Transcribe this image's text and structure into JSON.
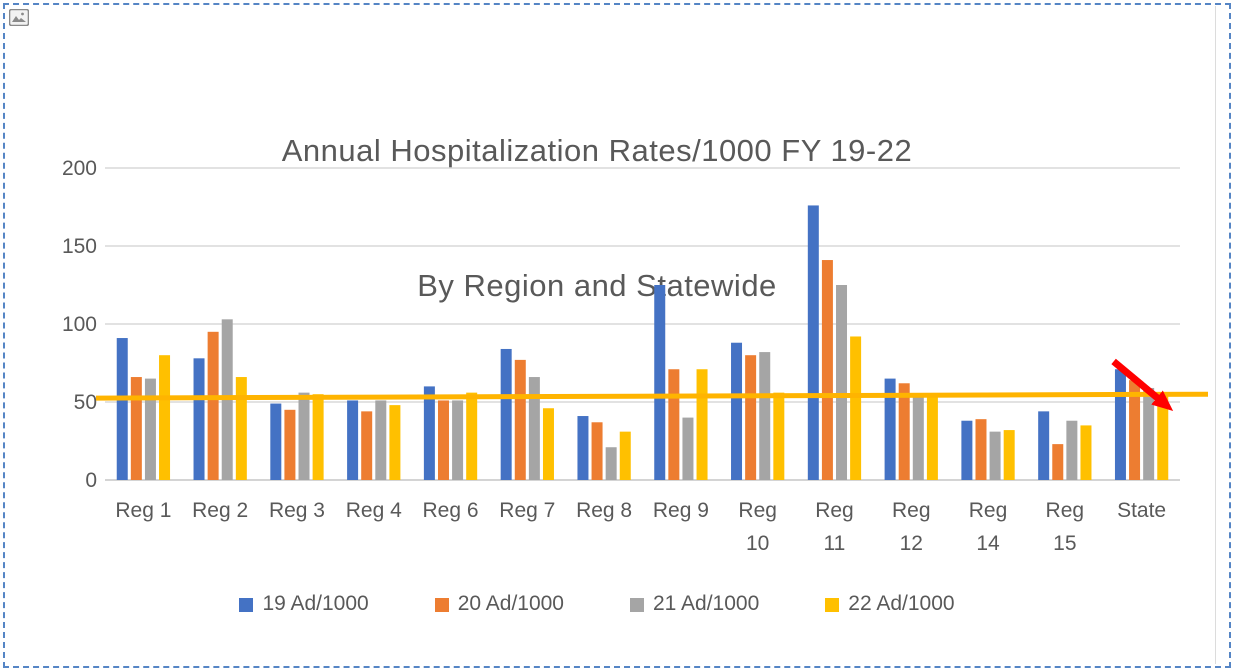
{
  "window": {
    "selection_state": "image selected with dashed marquee border"
  },
  "icons": {
    "image_placeholder": "image-placeholder-icon"
  },
  "chart_data": {
    "type": "bar",
    "title": "Annual Hospitalization Rates/1000 FY 19-22",
    "subtitle": "By Region and Statewide",
    "categories": [
      "Reg 1",
      "Reg 2",
      "Reg 3",
      "Reg 4",
      "Reg 6",
      "Reg 7",
      "Reg 8",
      "Reg 9",
      "Reg 10",
      "Reg 11",
      "Reg 12",
      "Reg 14",
      "Reg 15",
      "State"
    ],
    "wrap_labels": [
      "Reg 10",
      "Reg 11",
      "Reg 12",
      "Reg 14",
      "Reg 15"
    ],
    "series": [
      {
        "name": "19 Ad/1000",
        "color": "#4472C4",
        "values": [
          91,
          78,
          49,
          51,
          60,
          84,
          41,
          125,
          88,
          176,
          65,
          38,
          44,
          71
        ]
      },
      {
        "name": "20 Ad/1000",
        "color": "#ED7D31",
        "values": [
          66,
          95,
          45,
          44,
          51,
          77,
          37,
          71,
          80,
          141,
          62,
          39,
          23,
          64
        ]
      },
      {
        "name": "21 Ad/1000",
        "color": "#A5A5A5",
        "values": [
          65,
          103,
          56,
          51,
          51,
          66,
          21,
          40,
          82,
          125,
          53,
          31,
          38,
          59
        ]
      },
      {
        "name": "22 Ad/1000",
        "color": "#FFC000",
        "values": [
          80,
          66,
          55,
          48,
          56,
          46,
          31,
          71,
          56,
          92,
          55,
          32,
          35,
          55
        ]
      }
    ],
    "xlabel": "",
    "ylabel": "",
    "ylim": [
      0,
      200
    ],
    "yticks": [
      0,
      50,
      100,
      150,
      200
    ],
    "grid": true,
    "legend_position": "bottom",
    "axis_text_color": "#595959",
    "gridline_color": "#D9D9D9",
    "reference_line": {
      "color": "#FFB400",
      "start_value": 52.5,
      "end_value": 55,
      "description": "benchmark line spanning all regions at about 53/1000"
    },
    "annotation": {
      "type": "arrow",
      "color": "#FF0000",
      "category": "State",
      "from_value": 76,
      "to_value": 52,
      "description": "thick red arrow sloping down-right across the State bars"
    }
  }
}
